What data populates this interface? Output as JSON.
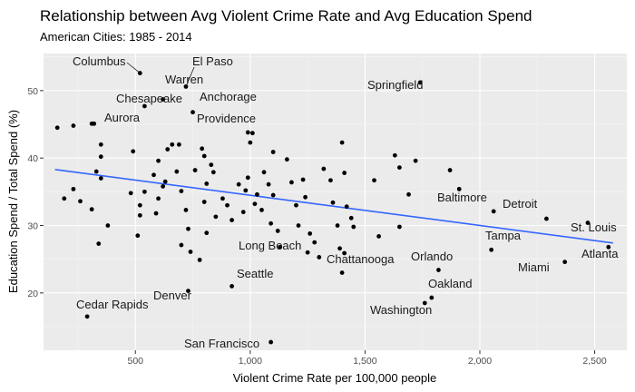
{
  "chart_data": {
    "type": "scatter",
    "title": "Relationship between Avg Violent Crime Rate and Avg Education Spend",
    "subtitle": "American Cities: 1985 - 2014",
    "xlabel": "Violent Crime Rate per 100,000 people",
    "ylabel": "Education Spend / Total Spend (%)",
    "xlim": [
      100,
      2640
    ],
    "ylim": [
      11.5,
      55.5
    ],
    "x_ticks": [
      500,
      1000,
      1500,
      2000,
      2500
    ],
    "x_tick_labels": [
      "500",
      "1,000",
      "1,500",
      "2,000",
      "2,500"
    ],
    "y_ticks": [
      20,
      30,
      40,
      50
    ],
    "y_tick_labels": [
      "20",
      "30",
      "40",
      "50"
    ],
    "grid": true,
    "background": "#ebebeb",
    "point_color": "#000000",
    "trend_color": "#3366ff",
    "trendline": {
      "x": [
        150,
        2580
      ],
      "y": [
        38.3,
        27.4
      ]
    },
    "labeled_points": [
      {
        "name": "Columbus",
        "x": 520,
        "y": 52.6
      },
      {
        "name": "El Paso",
        "x": 720,
        "y": 50.6
      },
      {
        "name": "Warren",
        "x": 620,
        "y": 48.7
      },
      {
        "name": "Chesapeake",
        "x": 540,
        "y": 47.7
      },
      {
        "name": "Anchorage",
        "x": 750,
        "y": 46.8
      },
      {
        "name": "Aurora",
        "x": 320,
        "y": 45.1
      },
      {
        "name": "Providence",
        "x": 990,
        "y": 43.8
      },
      {
        "name": "Springfield",
        "x": 1740,
        "y": 51.2
      },
      {
        "name": "Baltimore",
        "x": 2060,
        "y": 32.1
      },
      {
        "name": "Detroit",
        "x": 2290,
        "y": 31.0
      },
      {
        "name": "St. Louis",
        "x": 2470,
        "y": 30.4
      },
      {
        "name": "Atlanta",
        "x": 2560,
        "y": 26.8
      },
      {
        "name": "Tampa",
        "x": 2050,
        "y": 26.4
      },
      {
        "name": "Miami",
        "x": 2370,
        "y": 24.6
      },
      {
        "name": "Orlando",
        "x": 1820,
        "y": 23.4
      },
      {
        "name": "Oakland",
        "x": 1790,
        "y": 19.3
      },
      {
        "name": "Washington",
        "x": 1760,
        "y": 18.5
      },
      {
        "name": "Long Beach",
        "x": 1250,
        "y": 26.0
      },
      {
        "name": "Chattanooga",
        "x": 1410,
        "y": 25.9
      },
      {
        "name": "Seattle",
        "x": 920,
        "y": 21.0
      },
      {
        "name": "Denver",
        "x": 730,
        "y": 20.3
      },
      {
        "name": "Cedar Rapids",
        "x": 290,
        "y": 16.5
      },
      {
        "name": "San Francisco",
        "x": 1090,
        "y": 12.7
      }
    ],
    "other_points": [
      [
        160,
        44.5
      ],
      [
        230,
        44.8
      ],
      [
        310,
        45.1
      ],
      [
        350,
        42
      ],
      [
        350,
        40.2
      ],
      [
        330,
        38
      ],
      [
        350,
        37
      ],
      [
        230,
        35.4
      ],
      [
        190,
        34
      ],
      [
        260,
        33.6
      ],
      [
        310,
        32.4
      ],
      [
        340,
        27.3
      ],
      [
        380,
        30
      ],
      [
        490,
        41
      ],
      [
        480,
        34.8
      ],
      [
        520,
        33
      ],
      [
        520,
        31.5
      ],
      [
        510,
        28.5
      ],
      [
        540,
        35
      ],
      [
        600,
        39.6
      ],
      [
        580,
        37.5
      ],
      [
        620,
        35.8
      ],
      [
        600,
        34
      ],
      [
        590,
        31.8
      ],
      [
        660,
        42
      ],
      [
        640,
        41.3
      ],
      [
        690,
        42
      ],
      [
        630,
        36.5
      ],
      [
        680,
        38
      ],
      [
        700,
        35.1
      ],
      [
        720,
        32.3
      ],
      [
        730,
        29.5
      ],
      [
        700,
        27.1
      ],
      [
        740,
        26.1
      ],
      [
        760,
        38.2
      ],
      [
        790,
        41.4
      ],
      [
        800,
        40.3
      ],
      [
        830,
        39
      ],
      [
        810,
        36.2
      ],
      [
        840,
        37.9
      ],
      [
        800,
        33.5
      ],
      [
        850,
        31.3
      ],
      [
        810,
        28.9
      ],
      [
        780,
        24.9
      ],
      [
        880,
        34
      ],
      [
        900,
        33
      ],
      [
        920,
        30.8
      ],
      [
        950,
        36.1
      ],
      [
        980,
        35.2
      ],
      [
        970,
        32
      ],
      [
        990,
        37.1
      ],
      [
        1010,
        43.7
      ],
      [
        1000,
        42.3
      ],
      [
        1030,
        34.6
      ],
      [
        1020,
        33.2
      ],
      [
        1060,
        37.9
      ],
      [
        1050,
        32.3
      ],
      [
        1100,
        40.9
      ],
      [
        1080,
        36.1
      ],
      [
        1100,
        34.5
      ],
      [
        1090,
        30.3
      ],
      [
        1120,
        29.2
      ],
      [
        1130,
        26.8
      ],
      [
        1160,
        39.8
      ],
      [
        1180,
        36.4
      ],
      [
        1200,
        33
      ],
      [
        1210,
        30
      ],
      [
        1230,
        36.8
      ],
      [
        1240,
        34.2
      ],
      [
        1260,
        28.8
      ],
      [
        1280,
        27.5
      ],
      [
        1300,
        25.3
      ],
      [
        1320,
        38.4
      ],
      [
        1350,
        36.7
      ],
      [
        1360,
        33.4
      ],
      [
        1380,
        30
      ],
      [
        1400,
        42.3
      ],
      [
        1410,
        37.8
      ],
      [
        1420,
        32.8
      ],
      [
        1440,
        31.1
      ],
      [
        1450,
        29.8
      ],
      [
        1390,
        26.6
      ],
      [
        1400,
        23
      ],
      [
        1540,
        36.7
      ],
      [
        1560,
        28.4
      ],
      [
        1630,
        40.4
      ],
      [
        1650,
        38.6
      ],
      [
        1690,
        34.6
      ],
      [
        1720,
        39.6
      ],
      [
        1650,
        29.8
      ],
      [
        1870,
        38.2
      ],
      [
        1910,
        35.4
      ]
    ]
  }
}
